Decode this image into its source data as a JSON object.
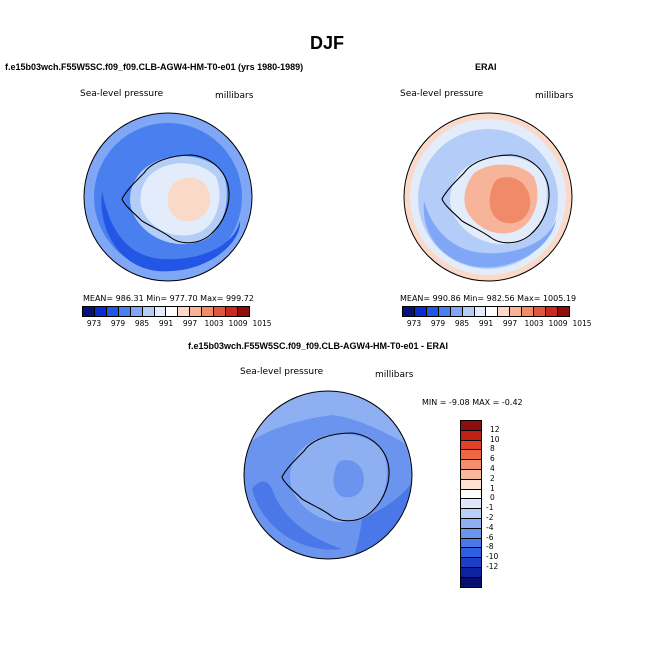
{
  "main_title": "DJF",
  "panels": [
    {
      "title": "f.e15b03wch.F55W5SC.f09_f09.CLB-AGW4-HM-T0-e01 (yrs 1980-1989)",
      "left_label": "Sea-level pressure",
      "right_label": "millibars",
      "stats": "MEAN= 986.31   Min= 977.70   Max= 999.72"
    },
    {
      "title": "ERAI",
      "left_label": "Sea-level pressure",
      "right_label": "millibars",
      "stats": "MEAN= 990.86   Min= 982.56   Max= 1005.19"
    },
    {
      "title": "f.e15b03wch.F55W5SC.f09_f09.CLB-AGW4-HM-T0-e01 - ERAI",
      "left_label": "Sea-level pressure",
      "right_label": "millibars",
      "stats": "MIN =   -9.08  MAX =   -0.42"
    }
  ],
  "abs_colorbar": {
    "colors": [
      "#08107a",
      "#0c2bd0",
      "#2456e6",
      "#4a7ff0",
      "#7fa7f5",
      "#b3cdf8",
      "#e2ecfb",
      "#ffffff",
      "#fbd9c8",
      "#f7b499",
      "#f08a68",
      "#e2573c",
      "#c72a1f",
      "#8f0d0d"
    ],
    "labels": [
      "973",
      "979",
      "985",
      "991",
      "997",
      "1003",
      "1009",
      "1015"
    ]
  },
  "diff_colorbar": {
    "colors": [
      "#8f0d0d",
      "#c21f14",
      "#e2402a",
      "#f06644",
      "#f58e6c",
      "#f9b79b",
      "#fde0d2",
      "#ffffff",
      "#dde8fb",
      "#b8cff8",
      "#8eb0f3",
      "#6a94ee",
      "#4a78e8",
      "#2e5fe0",
      "#1c3fc8",
      "#0e22a0",
      "#070f70"
    ],
    "labels": [
      "12",
      "10",
      "8",
      "6",
      "4",
      "2",
      "1",
      "0",
      "-1",
      "-2",
      "-4",
      "-6",
      "-8",
      "-10",
      "-12"
    ]
  },
  "map_colors": {
    "ocean_deep": "#2456e6",
    "ocean_mid": "#4a7ff0",
    "ocean_light": "#7fa7f5",
    "ice_edge": "#b3cdf8",
    "land_pale": "#e2ecfb",
    "land_warm": "#fbd9c8",
    "land_warmer": "#f7b499",
    "land_hot": "#f08a68"
  }
}
